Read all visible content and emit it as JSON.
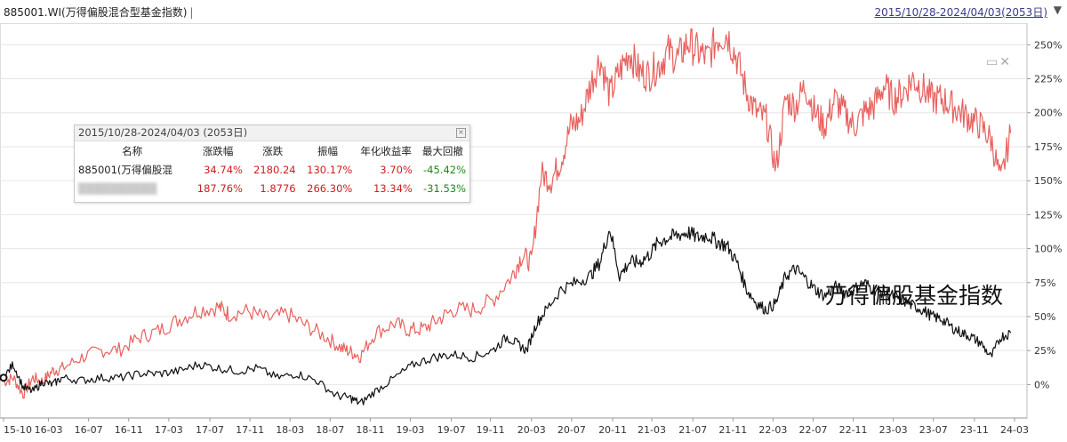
{
  "header": {
    "title": "885001.WI(万得偏股混合型基金指数)",
    "separator": "|",
    "date_range": "2015/10/28-2024/04/03(2053日)"
  },
  "watermark": "万得偏股基金指数",
  "colors": {
    "red_series": "#e8625f",
    "black_series": "#111111",
    "grid": "#e6e6e6",
    "positive": "#d01c1c",
    "negative": "#1a8a1a"
  },
  "icons": [
    "maximize-icon",
    "close-icon"
  ],
  "stats_panel": {
    "title": "2015/10/28-2024/04/03 (2053日)",
    "columns": [
      "名称",
      "涨跌幅",
      "涨跌",
      "振幅",
      "年化收益率",
      "最大回撤"
    ],
    "rows": [
      {
        "name": "885001(万得偏股混",
        "change_pct": "34.74%",
        "change": "2180.24",
        "amplitude": "130.17%",
        "annual": "3.70%",
        "max_dd": "-45.42%"
      },
      {
        "name": "",
        "change_pct": "187.76%",
        "change": "1.8776",
        "amplitude": "266.30%",
        "annual": "13.34%",
        "max_dd": "-31.53%"
      }
    ]
  },
  "chart_data": {
    "type": "line",
    "title": "",
    "xlabel": "",
    "ylabel": "",
    "ylim": [
      -22,
      262
    ],
    "y_ticks": [
      "0%",
      "25%",
      "50%",
      "75%",
      "100%",
      "125%",
      "150%",
      "175%",
      "200%",
      "225%",
      "250%"
    ],
    "y_tick_values": [
      0,
      25,
      50,
      75,
      100,
      125,
      150,
      175,
      200,
      225,
      250
    ],
    "x_ticks": [
      "15-10",
      "16-03",
      "16-07",
      "16-11",
      "17-03",
      "17-07",
      "17-11",
      "18-03",
      "18-07",
      "18-11",
      "19-03",
      "19-07",
      "19-11",
      "20-03",
      "20-07",
      "20-11",
      "21-03",
      "21-07",
      "21-11",
      "22-03",
      "22-07",
      "22-11",
      "23-03",
      "23-07",
      "23-11",
      "24-03"
    ],
    "x_tick_values": [
      0.0,
      4.6,
      8.7,
      12.8,
      16.9,
      21.1,
      25.2,
      29.3,
      33.4,
      37.5,
      41.6,
      45.8,
      49.8,
      54.0,
      58.1,
      62.3,
      66.3,
      70.5,
      74.6,
      78.7,
      82.8,
      86.9,
      91.0,
      95.1,
      99.3,
      103.4
    ],
    "x_unit": "months since 15-10",
    "series": [
      {
        "name": "",
        "color": "#e8625f",
        "x": [
          0,
          1,
          2,
          3,
          4,
          5,
          6,
          8,
          10,
          12,
          14,
          16,
          18,
          20,
          22,
          23,
          25,
          27,
          29,
          31,
          33,
          34.5,
          35.5,
          36.5,
          38,
          40,
          41.5,
          43,
          44.5,
          46,
          48,
          50,
          52,
          53,
          54,
          55,
          56,
          57,
          58,
          59,
          60,
          61,
          62,
          63,
          64,
          65,
          66,
          67,
          68,
          69,
          70,
          71,
          72,
          73,
          74,
          75,
          76,
          77,
          78,
          79,
          80,
          81,
          82,
          83,
          84,
          85,
          86,
          87,
          88,
          89,
          90,
          91,
          92,
          93,
          94,
          95,
          96,
          97,
          98,
          99,
          100,
          101,
          102,
          103
        ],
        "y": [
          2,
          5,
          -7,
          5,
          2,
          10,
          12,
          20,
          25,
          26,
          35,
          40,
          48,
          55,
          57,
          52,
          54,
          48,
          52,
          43,
          35,
          27,
          24,
          21,
          38,
          45,
          40,
          41,
          48,
          55,
          55,
          62,
          80,
          95,
          90,
          155,
          150,
          165,
          190,
          195,
          220,
          240,
          213,
          230,
          245,
          230,
          228,
          235,
          245,
          240,
          252,
          245,
          240,
          255,
          258,
          240,
          215,
          200,
          195,
          158,
          210,
          205,
          220,
          200,
          190,
          210,
          200,
          190,
          200,
          205,
          220,
          210,
          215,
          225,
          218,
          210,
          210,
          205,
          200,
          195,
          190,
          180,
          150,
          185
        ]
      },
      {
        "name": "",
        "color": "#111111",
        "x": [
          0,
          1,
          2,
          3,
          4,
          5,
          6,
          8,
          10,
          12,
          14,
          16,
          18,
          20,
          22,
          24,
          26,
          28,
          30,
          32,
          34,
          35.5,
          36.5,
          38,
          40,
          42,
          44,
          46,
          48,
          50,
          51.5,
          52.5,
          53.5,
          54.5,
          55.5,
          57,
          58.5,
          60,
          61,
          62,
          63,
          64,
          65,
          66,
          67,
          68,
          69,
          70,
          71,
          72,
          73,
          74,
          75,
          76,
          77,
          78,
          79,
          80,
          81,
          82,
          83,
          84,
          85,
          86,
          87,
          88,
          89,
          90,
          91,
          92,
          93,
          94,
          95,
          96,
          97,
          98,
          99,
          100,
          101,
          102,
          103
        ],
        "y": [
          5,
          15,
          -2,
          -5,
          2,
          0,
          5,
          3,
          5,
          5,
          8,
          8,
          10,
          15,
          12,
          10,
          12,
          5,
          8,
          3,
          -8,
          -10,
          -14,
          -5,
          5,
          15,
          20,
          22,
          20,
          25,
          35,
          30,
          25,
          45,
          55,
          70,
          75,
          80,
          90,
          115,
          80,
          90,
          90,
          95,
          105,
          108,
          110,
          112,
          108,
          110,
          105,
          102,
          90,
          70,
          60,
          55,
          60,
          80,
          85,
          78,
          70,
          65,
          72,
          68,
          70,
          75,
          70,
          68,
          65,
          62,
          58,
          55,
          50,
          48,
          42,
          38,
          35,
          30,
          20,
          35,
          38
        ]
      }
    ],
    "grid": true,
    "legend": "none"
  }
}
